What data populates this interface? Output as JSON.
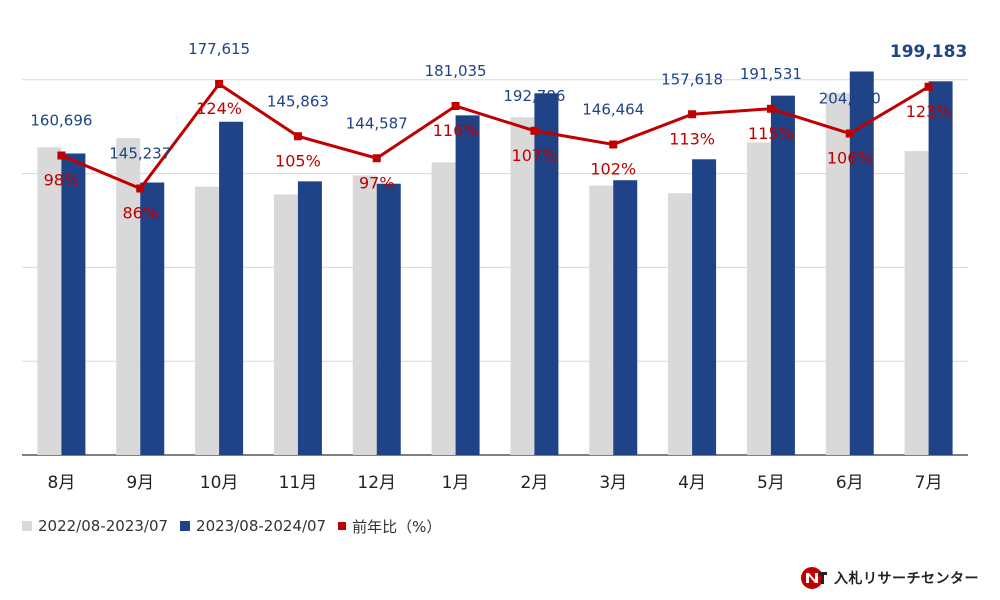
{
  "chart_data": {
    "type": "bar",
    "categories": [
      "8月",
      "9月",
      "10月",
      "11月",
      "12月",
      "1月",
      "2月",
      "3月",
      "4月",
      "5月",
      "6月",
      "7月"
    ],
    "ylim": [
      0,
      210000
    ],
    "grid": true,
    "legend_position": "bottom-left",
    "series": [
      {
        "name": "2022/08-2023/07",
        "type": "bar",
        "color": "#d9d9d9",
        "values": [
          164000,
          168900,
          143000,
          138900,
          149000,
          156000,
          180000,
          143600,
          139500,
          166600,
          192800,
          162000
        ]
      },
      {
        "name": "2023/08-2024/07",
        "type": "bar",
        "color": "#1f4386",
        "values": [
          160696,
          145237,
          177615,
          145863,
          144587,
          181035,
          192786,
          146464,
          157618,
          191531,
          204400,
          199183
        ]
      },
      {
        "name": "前年比（%）",
        "type": "line",
        "color": "#c00000",
        "values": [
          98,
          86,
          124,
          105,
          97,
          116,
          107,
          102,
          113,
          115,
          106,
          123
        ],
        "labels": [
          "98%",
          "86%",
          "124%",
          "105%",
          "97%",
          "116%",
          "107%",
          "102%",
          "113%",
          "115%",
          "106%",
          "123%"
        ]
      }
    ],
    "value_labels": [
      "160,696",
      "145,237",
      "177,615",
      "145,863",
      "144,587",
      "181,035",
      "192,786",
      "146,464",
      "157,618",
      "191,531",
      "204,400",
      "199,183"
    ]
  },
  "colors": {
    "prev": "#d9d9d9",
    "curr": "#1f4386",
    "ratio": "#c00000",
    "value_label": "#1f4386",
    "grid": "#d9d9d9"
  },
  "legend": [
    {
      "label": "2022/08-2023/07",
      "color": "#d9d9d9"
    },
    {
      "label": "2023/08-2024/07",
      "color": "#1f4386"
    },
    {
      "label": "前年比（%）",
      "color": "#c00000"
    }
  ],
  "logo": {
    "text": "入札リサーチセンター",
    "icon": "nr-logo-icon"
  }
}
